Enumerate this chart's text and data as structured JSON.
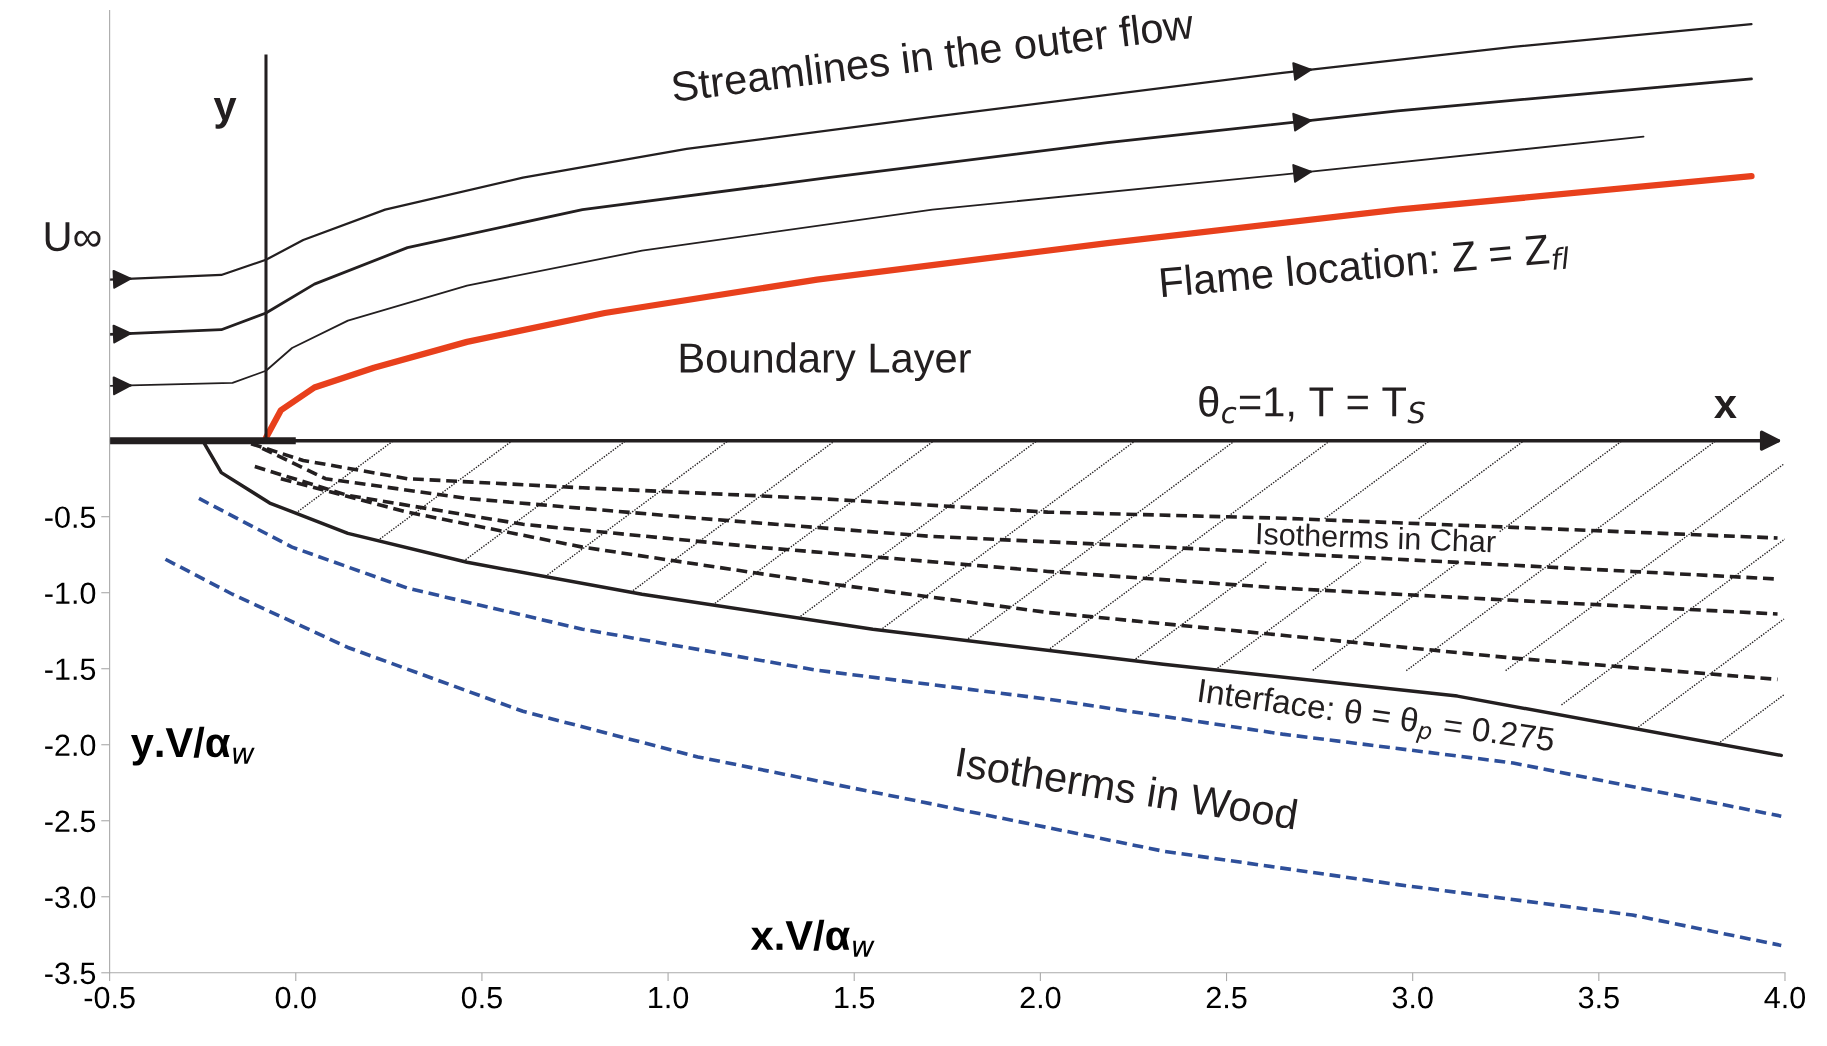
{
  "chart_data": {
    "type": "line",
    "xlabel": "x.V/α$_{w}$",
    "ylabel": "y.V/α$_{w}$",
    "xlim": [
      -0.5,
      4.0
    ],
    "ylim": [
      -3.5,
      2.83
    ],
    "xticks": [
      {
        "value": -0.5,
        "label": "-0.5"
      },
      {
        "value": 0,
        "label": "0.0"
      },
      {
        "value": 0.5,
        "label": "0.5"
      },
      {
        "value": 1,
        "label": "1.0"
      },
      {
        "value": 1.5,
        "label": "1.5"
      },
      {
        "value": 2,
        "label": "2.0"
      },
      {
        "value": 2.5,
        "label": "2.5"
      },
      {
        "value": 3,
        "label": "3.0"
      },
      {
        "value": 3.5,
        "label": "3.5"
      },
      {
        "value": 4,
        "label": "4.0"
      }
    ],
    "yticks": [
      {
        "value": -3.5,
        "label": "-3.5"
      },
      {
        "value": -3,
        "label": "-3.0"
      },
      {
        "value": -2.5,
        "label": "-2.5"
      },
      {
        "value": -2,
        "label": "-2.0"
      },
      {
        "value": -1.5,
        "label": "-1.5"
      },
      {
        "value": -1,
        "label": "-1.0"
      },
      {
        "value": -0.5,
        "label": "-0.5"
      }
    ],
    "grid": false,
    "legend": false,
    "marker": "none",
    "series": [
      {
        "color": "#231f20",
        "line_style": "solid",
        "x": [
          -0.5,
          -0.2,
          -0.08,
          0.02,
          0.24,
          0.61,
          1.05,
          1.71,
          2.65,
          3.27,
          3.91
        ],
        "values": [
          1.06,
          1.09,
          1.19,
          1.32,
          1.52,
          1.73,
          1.92,
          2.13,
          2.42,
          2.59,
          2.74
        ]
      },
      {
        "color": "#231f20",
        "line_style": "solid",
        "x": [
          -0.5,
          -0.2,
          -0.08,
          0.05,
          0.3,
          0.77,
          1.43,
          2.18,
          2.96,
          3.91
        ],
        "values": [
          0.7,
          0.73,
          0.84,
          1.03,
          1.27,
          1.52,
          1.73,
          1.96,
          2.17,
          2.38
        ]
      },
      {
        "color": "#231f20",
        "line_style": "solid",
        "x": [
          -0.5,
          -0.17,
          -0.08,
          -0.01,
          0.14,
          0.46,
          0.93,
          1.71,
          2.65,
          3.62
        ],
        "values": [
          0.36,
          0.38,
          0.46,
          0.61,
          0.79,
          1.02,
          1.25,
          1.52,
          1.75,
          2.0
        ]
      },
      {
        "color": "#e8401c",
        "line_style": "solid",
        "x": [
          -0.08,
          -0.04,
          0.05,
          0.21,
          0.46,
          0.83,
          1.4,
          2.18,
          2.96,
          3.91
        ],
        "values": [
          0.02,
          0.2,
          0.35,
          0.48,
          0.65,
          0.84,
          1.06,
          1.3,
          1.52,
          1.74
        ]
      },
      {
        "color": "#231f20",
        "line_style": "solid",
        "x": [
          -0.25,
          -0.2,
          -0.07,
          0.14,
          0.46,
          0.93,
          1.55,
          2.33,
          3.12,
          3.99
        ],
        "values": [
          0.0,
          -0.21,
          -0.41,
          -0.61,
          -0.8,
          -1.01,
          -1.24,
          -1.47,
          -1.68,
          -2.07
        ]
      },
      {
        "color": "#231f20",
        "line_style": "dashed",
        "x": [
          -0.12,
          0.02,
          0.3,
          0.77,
          1.4,
          2.02,
          2.65,
          3.27,
          3.98
        ],
        "values": [
          -0.02,
          -0.13,
          -0.25,
          -0.31,
          -0.38,
          -0.47,
          -0.51,
          -0.57,
          -0.64
        ]
      },
      {
        "color": "#231f20",
        "line_style": "dashed",
        "x": [
          -0.09,
          0.08,
          0.46,
          1.08,
          1.71,
          2.33,
          2.96,
          3.59,
          3.98
        ],
        "values": [
          -0.05,
          -0.25,
          -0.38,
          -0.51,
          -0.63,
          -0.7,
          -0.78,
          -0.86,
          -0.91
        ]
      },
      {
        "color": "#231f20",
        "line_style": "dashed",
        "x": [
          -0.11,
          0.14,
          0.61,
          1.24,
          2.02,
          2.65,
          3.27,
          3.98
        ],
        "values": [
          -0.17,
          -0.36,
          -0.55,
          -0.7,
          -0.86,
          -0.97,
          -1.05,
          -1.14
        ]
      },
      {
        "color": "#231f20",
        "line_style": "dashed",
        "x": [
          -0.04,
          0.3,
          0.77,
          1.4,
          2.02,
          2.65,
          3.27,
          3.98
        ],
        "values": [
          -0.25,
          -0.47,
          -0.7,
          -0.93,
          -1.13,
          -1.28,
          -1.43,
          -1.57
        ]
      },
      {
        "color": "#2e4f9a",
        "line_style": "dashed",
        "x": [
          -0.26,
          -0.01,
          0.3,
          0.77,
          1.4,
          2.02,
          2.65,
          3.27,
          3.99
        ],
        "values": [
          -0.38,
          -0.7,
          -0.97,
          -1.24,
          -1.51,
          -1.7,
          -1.93,
          -2.12,
          -2.47
        ]
      },
      {
        "color": "#2e4f9a",
        "line_style": "dashed",
        "x": [
          -0.35,
          -0.17,
          0.14,
          0.61,
          1.08,
          1.71,
          2.33,
          2.96,
          3.59,
          3.99
        ],
        "values": [
          -0.78,
          -1.01,
          -1.36,
          -1.78,
          -2.08,
          -2.39,
          -2.7,
          -2.92,
          -3.12,
          -3.32
        ]
      }
    ],
    "ref_lines": [
      {
        "axis": "x",
        "value": -0.08,
        "label": "y",
        "color": "#231f20"
      },
      {
        "axis": "y",
        "value": 0,
        "label": "x",
        "color": "#231f20"
      }
    ],
    "annotations": [
      "Streamlines in the outer flow",
      "U∞",
      "Flame location: Z = Z$_{fl}$",
      "Boundary Layer",
      "θ$_{c}$=1, T = T$_{S}$",
      "Isotherms in Char",
      "Interface: θ = θ$_{p}$ = 0.275",
      "Isotherms in Wood"
    ]
  }
}
